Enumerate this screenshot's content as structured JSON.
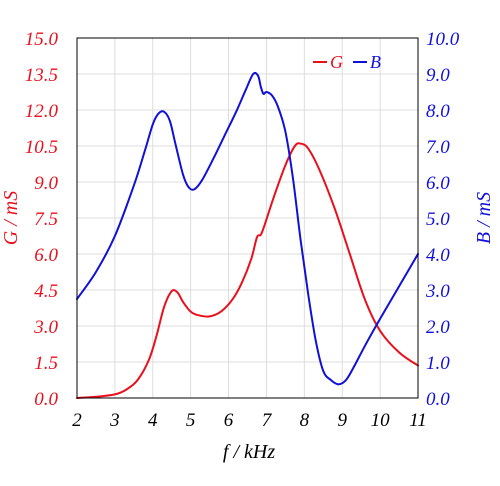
{
  "chart_data": {
    "type": "line",
    "title": "",
    "xlabel": "f / kHz",
    "ylabel_left": "G / mS",
    "ylabel_right": "B / mS",
    "xlim": [
      2,
      11
    ],
    "ylim_left": [
      0,
      15
    ],
    "ylim_right": [
      0,
      10
    ],
    "grid": true,
    "legend_position": "top-right",
    "x_ticks": [
      "2",
      "3",
      "4",
      "5",
      "6",
      "7",
      "8",
      "9",
      "10",
      "11"
    ],
    "y_left_ticks": [
      "0.0",
      "1.5",
      "3.0",
      "4.5",
      "6.0",
      "7.5",
      "9.0",
      "10.5",
      "12.0",
      "13.5",
      "15.0"
    ],
    "y_right_ticks": [
      "0.0",
      "1.0",
      "2.0",
      "3.0",
      "4.0",
      "5.0",
      "6.0",
      "7.0",
      "8.0",
      "9.0",
      "10.0"
    ],
    "colors": {
      "G": "#e8101c",
      "B": "#1010d8",
      "grid": "#dddddd",
      "frame": "#000000"
    },
    "series": [
      {
        "name": "G",
        "axis": "left",
        "color": "#e8101c",
        "x": [
          2.0,
          2.5,
          3.0,
          3.3,
          3.6,
          3.9,
          4.1,
          4.3,
          4.5,
          4.65,
          4.8,
          5.0,
          5.2,
          5.5,
          5.8,
          6.1,
          6.35,
          6.6,
          6.75,
          6.85,
          6.95,
          7.2,
          7.5,
          7.75,
          7.9,
          8.1,
          8.4,
          8.8,
          9.2,
          9.6,
          10.0,
          10.5,
          11.0
        ],
        "y": [
          0.0,
          0.05,
          0.15,
          0.35,
          0.75,
          1.6,
          2.6,
          3.8,
          4.45,
          4.4,
          4.0,
          3.6,
          3.45,
          3.4,
          3.6,
          4.1,
          4.8,
          5.8,
          6.7,
          6.8,
          7.2,
          8.4,
          9.7,
          10.5,
          10.6,
          10.4,
          9.5,
          7.9,
          6.0,
          4.1,
          2.8,
          1.9,
          1.35
        ]
      },
      {
        "name": "B",
        "axis": "right",
        "color": "#1010d8",
        "x": [
          2.0,
          2.5,
          3.0,
          3.5,
          3.8,
          4.0,
          4.15,
          4.3,
          4.45,
          4.6,
          4.8,
          4.95,
          5.1,
          5.3,
          5.6,
          5.9,
          6.2,
          6.45,
          6.65,
          6.78,
          6.85,
          6.92,
          7.0,
          7.15,
          7.3,
          7.5,
          7.7,
          7.9,
          8.1,
          8.3,
          8.5,
          8.7,
          8.9,
          9.1,
          9.3,
          9.6,
          10.0,
          10.5,
          11.0
        ],
        "y": [
          2.75,
          3.5,
          4.5,
          5.9,
          6.9,
          7.6,
          7.9,
          7.95,
          7.7,
          7.05,
          6.2,
          5.85,
          5.8,
          6.05,
          6.65,
          7.3,
          7.95,
          8.55,
          9.0,
          8.95,
          8.65,
          8.45,
          8.5,
          8.4,
          8.1,
          7.4,
          6.1,
          4.4,
          2.9,
          1.6,
          0.75,
          0.5,
          0.38,
          0.5,
          0.85,
          1.45,
          2.2,
          3.1,
          4.0
        ]
      }
    ]
  }
}
